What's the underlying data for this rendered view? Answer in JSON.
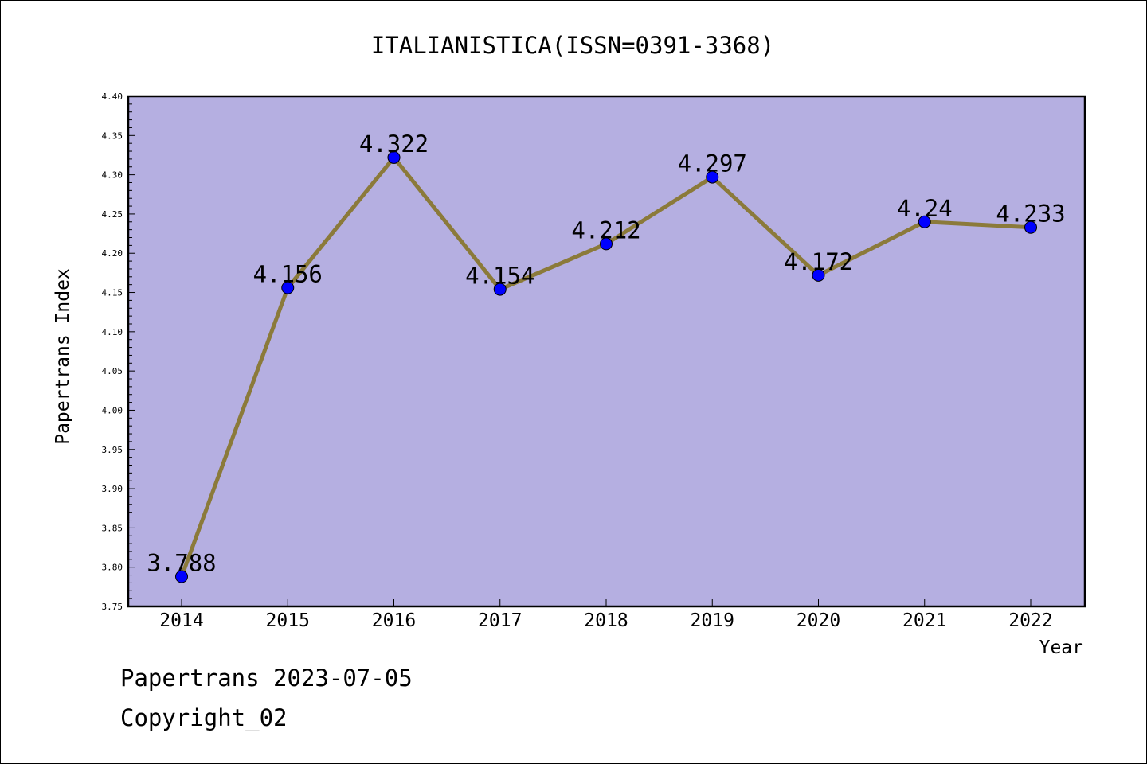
{
  "chart_data": {
    "type": "line",
    "title": "ITALIANISTICA(ISSN=0391-3368)",
    "xlabel": "Year",
    "ylabel": "Papertrans Index",
    "categories": [
      "2014",
      "2015",
      "2016",
      "2017",
      "2018",
      "2019",
      "2020",
      "2021",
      "2022"
    ],
    "series": [
      {
        "values": [
          3.788,
          4.156,
          4.322,
          4.154,
          4.212,
          4.297,
          4.172,
          4.24,
          4.233
        ],
        "labels": [
          "3.788",
          "4.156",
          "4.322",
          "4.154",
          "4.212",
          "4.297",
          "4.172",
          "4.24",
          "4.233"
        ]
      }
    ],
    "ylim": [
      3.75,
      4.4
    ],
    "yticks": [
      "3.75",
      "3.80",
      "3.85",
      "3.90",
      "3.95",
      "4.00",
      "4.05",
      "4.10",
      "4.15",
      "4.20",
      "4.25",
      "4.30",
      "4.35",
      "4.40"
    ],
    "grid": false,
    "legend": "none",
    "colors": {
      "plot_background": "#b5afe1",
      "line": "#8b7a3a",
      "marker": "#0000ff",
      "axis": "#000000"
    }
  },
  "footer": {
    "date_text": "Papertrans 2023-07-05",
    "copyright_text": "Copyright_02"
  }
}
